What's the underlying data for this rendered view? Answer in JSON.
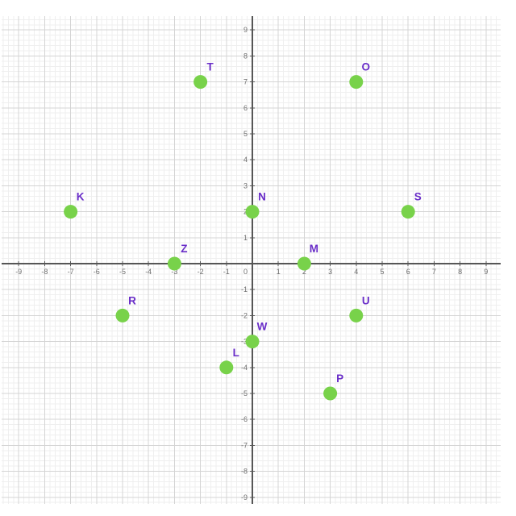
{
  "chart_data": {
    "type": "scatter",
    "title": "",
    "xlabel": "",
    "ylabel": "",
    "points": [
      {
        "label": "T",
        "x": -2,
        "y": 7
      },
      {
        "label": "O",
        "x": 4,
        "y": 7
      },
      {
        "label": "K",
        "x": -7,
        "y": 2
      },
      {
        "label": "N",
        "x": 0,
        "y": 2
      },
      {
        "label": "S",
        "x": 6,
        "y": 2
      },
      {
        "label": "Z",
        "x": -3,
        "y": 0
      },
      {
        "label": "M",
        "x": 2,
        "y": 0
      },
      {
        "label": "R",
        "x": -5,
        "y": -2
      },
      {
        "label": "U",
        "x": 4,
        "y": -2
      },
      {
        "label": "W",
        "x": 0,
        "y": -3
      },
      {
        "label": "L",
        "x": -1,
        "y": -4
      },
      {
        "label": "P",
        "x": 3,
        "y": -5
      }
    ],
    "xlim": [
      -9.7,
      9.6
    ],
    "ylim": [
      -9.3,
      9.5
    ],
    "x_tick_labels": [
      "-9",
      "-8",
      "-7",
      "-6",
      "-5",
      "-4",
      "-3",
      "-2",
      "-1",
      "1",
      "2",
      "3",
      "4",
      "5",
      "6",
      "7",
      "8",
      "9"
    ],
    "y_tick_labels": [
      "9",
      "8",
      "7",
      "6",
      "5",
      "4",
      "3",
      "2",
      "1",
      "-1",
      "-2",
      "-3",
      "-4",
      "-5",
      "-6",
      "-7",
      "-8",
      "-9"
    ],
    "origin_label": "0",
    "grid": {
      "visible": true,
      "major_step": 1,
      "minor_step": 0.2
    },
    "legend": "none",
    "colors": {
      "point": "#78d24a",
      "point_label": "#692dc8",
      "axis": "#565656",
      "grid_major": "#d4d4d4",
      "grid_minor": "#efefef",
      "tick_label": "#6e6e6e",
      "background": "#ffffff"
    }
  }
}
